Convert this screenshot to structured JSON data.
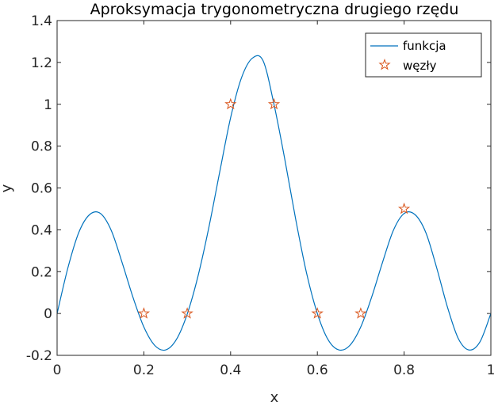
{
  "chart_data": {
    "type": "line",
    "title": "Aproksymacja trygonometryczna drugiego rzędu",
    "xlabel": "x",
    "ylabel": "y",
    "xlim": [
      0,
      1
    ],
    "ylim": [
      -0.2,
      1.4
    ],
    "xticks": [
      0,
      0.2,
      0.4,
      0.6,
      0.8,
      1
    ],
    "xtick_labels": [
      "0",
      "0.2",
      "0.4",
      "0.6",
      "0.8",
      "1"
    ],
    "yticks": [
      -0.2,
      0,
      0.2,
      0.4,
      0.6,
      0.8,
      1,
      1.2,
      1.4
    ],
    "ytick_labels": [
      "-0.2",
      "0",
      "0.2",
      "0.4",
      "0.6",
      "0.8",
      "1",
      "1.2",
      "1.4"
    ],
    "grid": false,
    "legend_position": "top-right",
    "series": [
      {
        "name": "funkcja",
        "kind": "line",
        "color": "#0072BD",
        "x": [
          0,
          0.025,
          0.05,
          0.075,
          0.1,
          0.125,
          0.15,
          0.175,
          0.2,
          0.225,
          0.25,
          0.275,
          0.3,
          0.325,
          0.35,
          0.375,
          0.4,
          0.425,
          0.45,
          0.475,
          0.5,
          0.525,
          0.55,
          0.575,
          0.6,
          0.625,
          0.65,
          0.675,
          0.7,
          0.725,
          0.75,
          0.775,
          0.8,
          0.825,
          0.85,
          0.875,
          0.9,
          0.925,
          0.95,
          0.975,
          1
        ],
        "y": [
          0,
          0.2189,
          0.3872,
          0.4728,
          0.478,
          0.3964,
          0.2429,
          0.0771,
          -0.0644,
          -0.1522,
          -0.1744,
          -0.1243,
          -0.0025,
          0.1799,
          0.4129,
          0.6775,
          0.9357,
          1.126,
          1.22,
          1.2076,
          1.0,
          0.7362,
          0.4511,
          0.1942,
          0.0,
          -0.1262,
          -0.1744,
          -0.1522,
          -0.0644,
          0.0771,
          0.2429,
          0.3964,
          0.478,
          0.4728,
          0.3872,
          0.2189,
          0.03,
          -0.12,
          -0.1744,
          -0.135,
          0
        ]
      },
      {
        "name": "węzły",
        "kind": "markers",
        "marker": "pentagram",
        "color": "#D95319",
        "x": [
          0.2,
          0.3,
          0.4,
          0.5,
          0.6,
          0.7,
          0.8
        ],
        "y": [
          0,
          0,
          1,
          1,
          0,
          0,
          0.5
        ]
      }
    ]
  }
}
